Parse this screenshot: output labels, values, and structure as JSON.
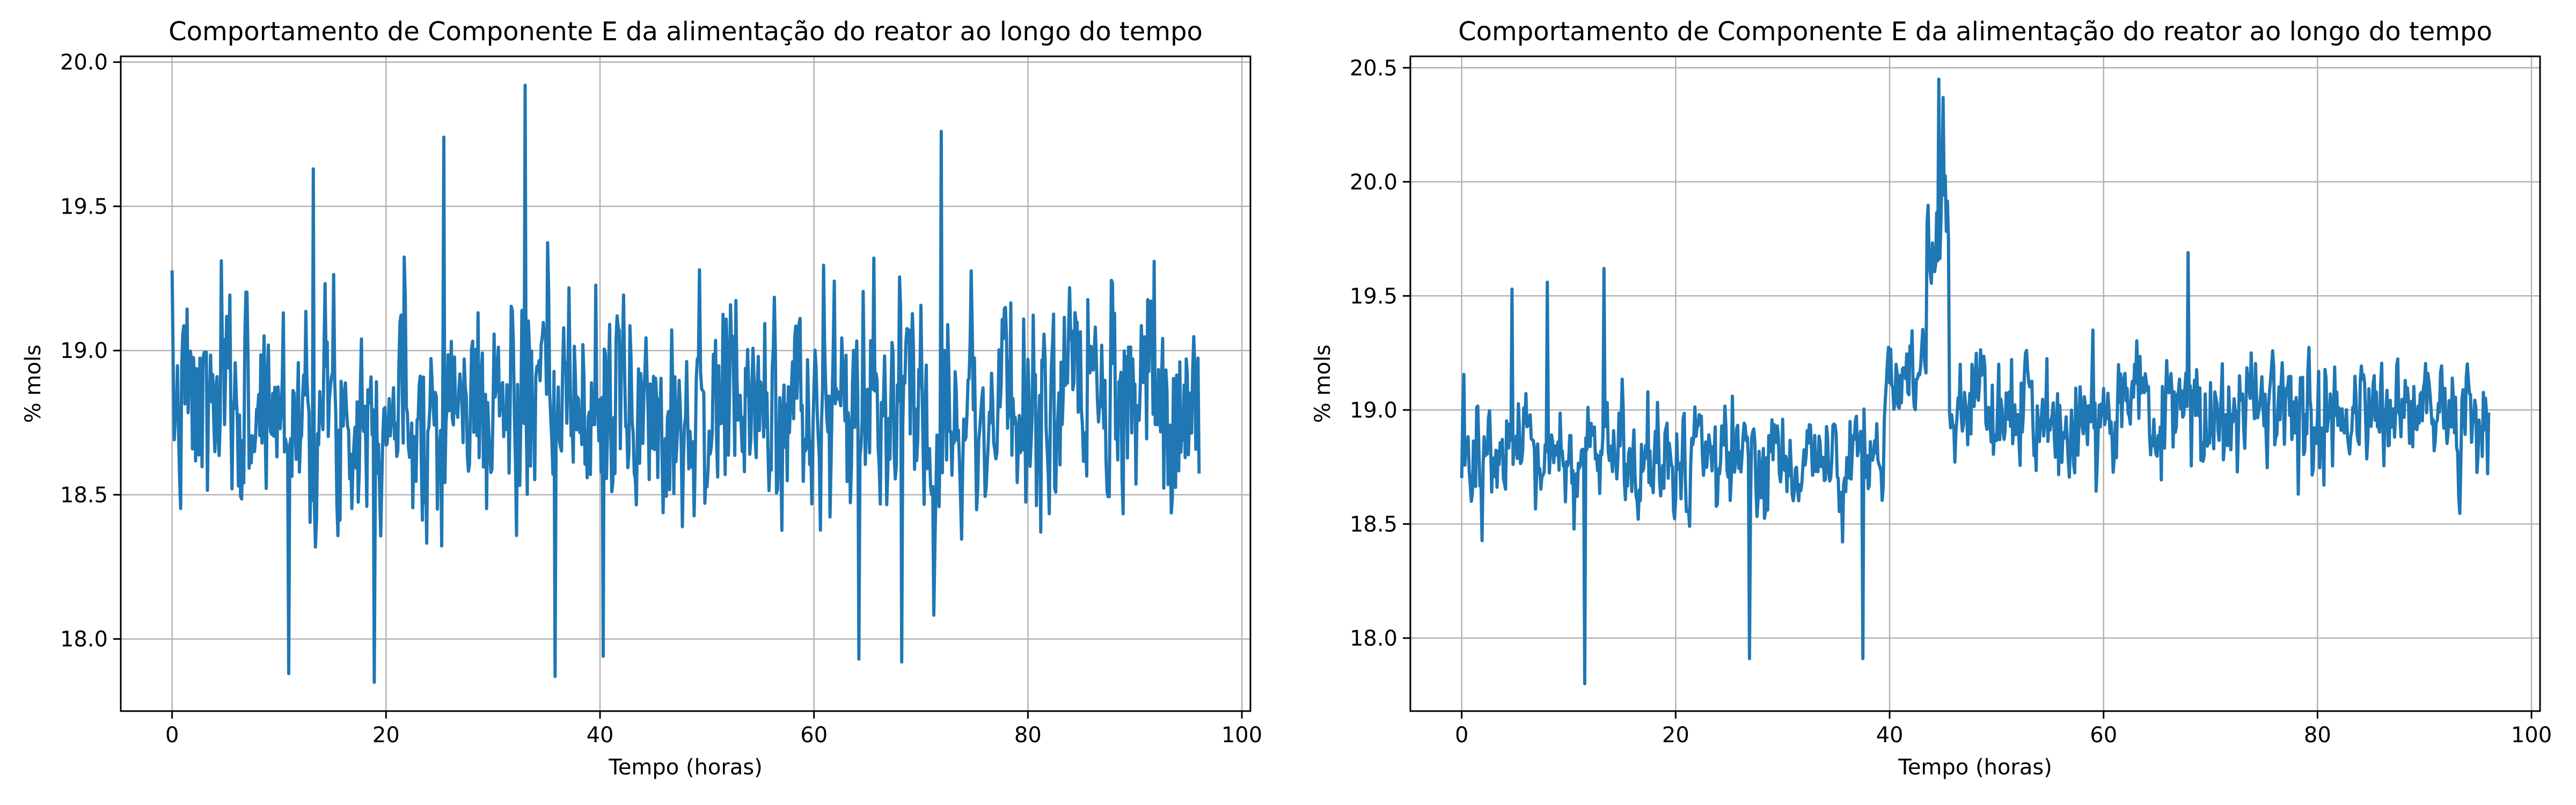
{
  "chart_data": [
    {
      "type": "line",
      "title": "Comportamento de Componente E da alimentação do reator ao longo do tempo",
      "xlabel": "Tempo (horas)",
      "ylabel": "% mols",
      "xlim": [
        -4.8,
        100.8
      ],
      "ylim": [
        17.75,
        20.02
      ],
      "xticks": [
        0,
        20,
        40,
        60,
        80,
        100
      ],
      "yticks": [
        18.0,
        18.5,
        19.0,
        19.5,
        20.0
      ],
      "xtick_labels": [
        "0",
        "20",
        "40",
        "60",
        "80",
        "100"
      ],
      "ytick_labels": [
        "18.0",
        "18.5",
        "19.0",
        "19.5",
        "20.0"
      ],
      "grid": true,
      "line_color": "#1f77b4",
      "x_start": 0,
      "x_step": 0.1,
      "points_count": 961,
      "pattern": "noisy_stationary",
      "mean": 18.8,
      "amplitude": 0.42,
      "seed": 7,
      "extremes": [
        [
          10.9,
          17.88
        ],
        [
          18.9,
          17.85
        ],
        [
          35.8,
          17.87
        ],
        [
          25.4,
          19.74
        ],
        [
          33.0,
          19.92
        ],
        [
          71.9,
          19.76
        ],
        [
          13.2,
          19.63
        ],
        [
          40.3,
          17.94
        ],
        [
          68.2,
          17.92
        ],
        [
          64.2,
          17.93
        ]
      ]
    },
    {
      "type": "line",
      "title": "Comportamento de Componente E da alimentação do reator ao longo do tempo",
      "xlabel": "Tempo (horas)",
      "ylabel": "% mols",
      "xlim": [
        -4.8,
        100.8
      ],
      "ylim": [
        17.68,
        20.55
      ],
      "xticks": [
        0,
        20,
        40,
        60,
        80,
        100
      ],
      "yticks": [
        18.0,
        18.5,
        19.0,
        19.5,
        20.0,
        20.5
      ],
      "xtick_labels": [
        "0",
        "20",
        "40",
        "60",
        "80",
        "100"
      ],
      "ytick_labels": [
        "18.0",
        "18.5",
        "19.0",
        "19.5",
        "20.0",
        "20.5"
      ],
      "grid": true,
      "line_color": "#1f77b4",
      "x_start": 0,
      "x_step": 0.1,
      "points_count": 961,
      "pattern": "noisy_with_spike",
      "mean_segments": [
        [
          0,
          39.5,
          18.78
        ],
        [
          39.5,
          43.5,
          19.1
        ],
        [
          43.5,
          45.6,
          19.75
        ],
        [
          45.6,
          96,
          18.98
        ]
      ],
      "amplitude": 0.28,
      "seed": 13,
      "extremes": [
        [
          11.5,
          17.8
        ],
        [
          44.6,
          20.45
        ],
        [
          45.0,
          20.37
        ],
        [
          26.9,
          17.91
        ],
        [
          37.5,
          17.91
        ],
        [
          67.9,
          19.69
        ],
        [
          4.7,
          19.53
        ],
        [
          8.0,
          19.56
        ],
        [
          13.3,
          19.62
        ]
      ]
    }
  ]
}
